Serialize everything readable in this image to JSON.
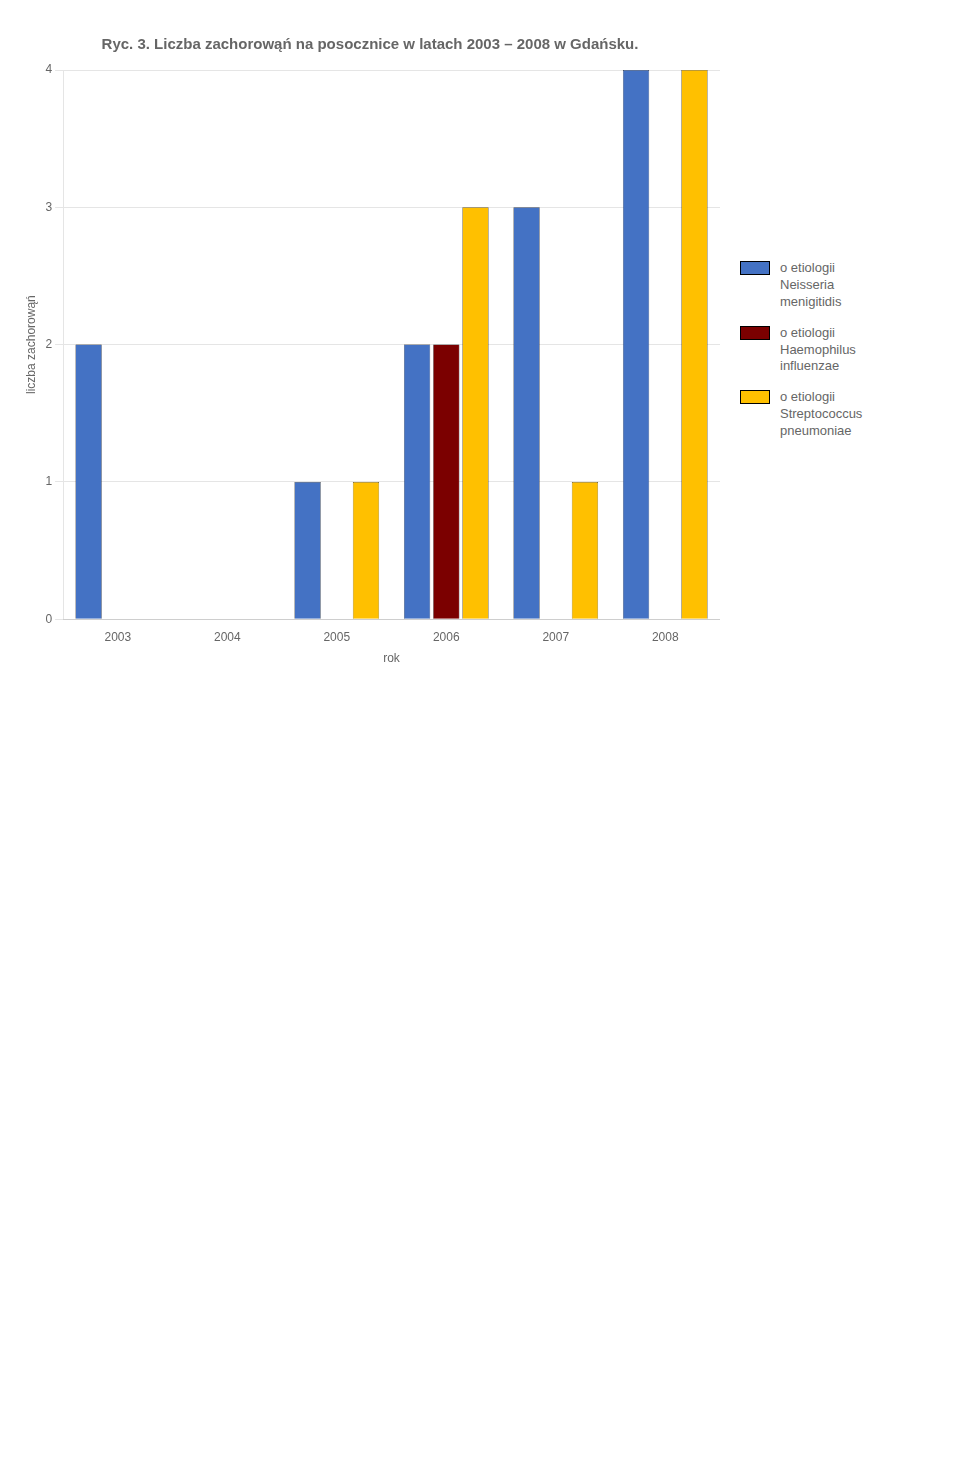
{
  "chart_data": {
    "type": "bar",
    "title": "Ryc. 3. Liczba zachorowąń na posocznice w latach 2003 – 2008 w Gdańsku.",
    "xlabel": "rok",
    "ylabel": "liczba zachorowąń",
    "categories": [
      "2003",
      "2004",
      "2005",
      "2006",
      "2007",
      "2008"
    ],
    "series": [
      {
        "name": "o etiologii\nNeisseria\nmenigitidis",
        "color": "#4472C4",
        "values": [
          2,
          0,
          1,
          2,
          3,
          4
        ]
      },
      {
        "name": "o etiologii\nHaemophilus\ninfluenzae",
        "color": "#7B0000",
        "values": [
          0,
          0,
          0,
          2,
          0,
          0
        ]
      },
      {
        "name": "o etiologii\nStreptococcus\npneumoniae",
        "color": "#FFC000",
        "values": [
          0,
          0,
          1,
          3,
          1,
          4
        ]
      }
    ],
    "ylim": [
      0,
      4
    ],
    "yticks": [
      0,
      1,
      2,
      3,
      4
    ],
    "grid": true,
    "legend": "right"
  }
}
